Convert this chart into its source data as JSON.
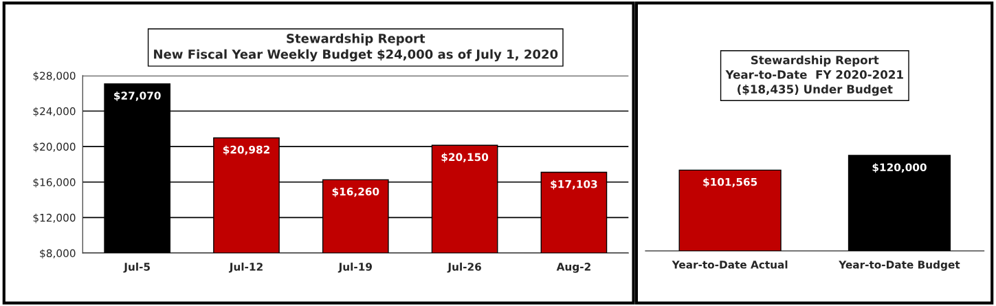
{
  "chart_data": [
    {
      "type": "bar",
      "title": "Stewardship Report\nNew Fiscal Year Weekly Budget $24,000 as of July 1, 2020",
      "categories": [
        "Jul-5",
        "Jul-12",
        "Jul-19",
        "Jul-26",
        "Aug-2"
      ],
      "values": [
        27070,
        20982,
        16260,
        20150,
        17103
      ],
      "colors": [
        "#000000",
        "#c00000",
        "#c00000",
        "#c00000",
        "#c00000"
      ],
      "value_labels": [
        "$27,070",
        "$20,982",
        "$16,260",
        "$20,150",
        "$17,103"
      ],
      "ylim": [
        8000,
        28000
      ],
      "yticks": [
        {
          "value": 8000,
          "label": "$8,000"
        },
        {
          "value": 12000,
          "label": "$12,000"
        },
        {
          "value": 16000,
          "label": "$16,000"
        },
        {
          "value": 20000,
          "label": "$20,000"
        },
        {
          "value": 24000,
          "label": "$24,000"
        },
        {
          "value": 28000,
          "label": "$28,000"
        }
      ],
      "grid": "y"
    },
    {
      "type": "bar",
      "title": "Stewardship Report\nYear-to-Date  FY 2020-2021",
      "subtitle": "($18,435) Under Budget",
      "categories": [
        "Year-to-Date Actual",
        "Year-to-Date Budget"
      ],
      "values": [
        101565,
        120000
      ],
      "colors": [
        "#c00000",
        "#000000"
      ],
      "value_labels": [
        "$101,565",
        "$120,000"
      ],
      "tick_labels": "x"
    }
  ]
}
